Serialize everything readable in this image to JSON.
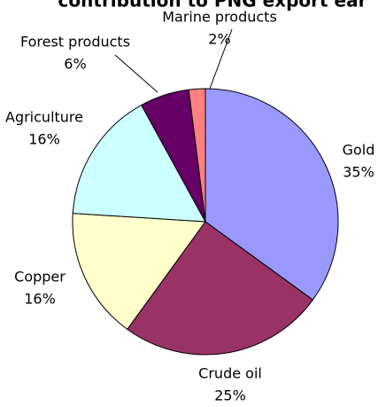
{
  "chart_data": {
    "type": "pie",
    "title": "contribution to PNG export ear",
    "categories": [
      "Gold",
      "Crude oil",
      "Copper",
      "Agriculture",
      "Forest products",
      "Marine products"
    ],
    "values": [
      35,
      25,
      16,
      16,
      6,
      2
    ],
    "value_labels": [
      "35%",
      "25%",
      "16%",
      "16%",
      "6%",
      "2%"
    ],
    "colors": [
      "#9999ff",
      "#993366",
      "#ffffcc",
      "#ccffff",
      "#660066",
      "#ff8080"
    ]
  }
}
